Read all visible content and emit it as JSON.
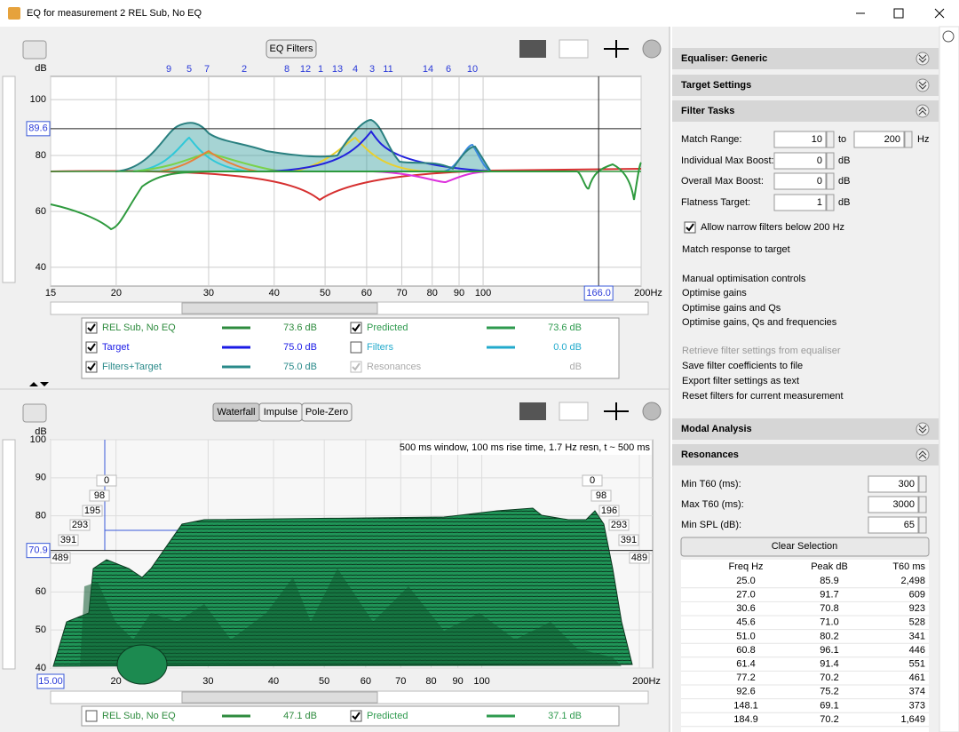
{
  "window": {
    "title": "EQ for measurement 2 REL Sub, No EQ"
  },
  "top_panel": {
    "eq_filters_button": "EQ Filters",
    "y_unit": "dB",
    "filter_labels": [
      "9",
      "5",
      "7",
      "2",
      "8",
      "12",
      "1",
      "13",
      "4",
      "3",
      "11",
      "14",
      "6",
      "10"
    ],
    "xlim": [
      15,
      200
    ],
    "ylim": [
      33.3,
      108.3
    ],
    "log_x": true,
    "yticks": [
      40,
      60,
      80,
      100
    ],
    "xticks": [
      15,
      20,
      30,
      40,
      50,
      60,
      70,
      80,
      90,
      100,
      {
        "value": 200,
        "label": "200Hz"
      }
    ],
    "y_cursor": 89.6,
    "x_cursor": {
      "value": 166,
      "label": "166.0"
    },
    "legend": [
      {
        "name": "REL Sub, No EQ",
        "value": "73.6 dB",
        "color": "#2e8b3e",
        "checked": true
      },
      {
        "name": "Predicted",
        "value": "73.6 dB",
        "color": "#2e9a4e",
        "checked": true
      },
      {
        "name": "Target",
        "value": "75.0 dB",
        "color": "#1a1ae6",
        "checked": true
      },
      {
        "name": "Filters",
        "value": "0.0 dB",
        "color": "#22aacc",
        "checked": false
      },
      {
        "name": "Filters+Target",
        "value": "75.0 dB",
        "color": "#2a8a8a",
        "checked": true
      },
      {
        "name": "Resonances",
        "value": "dB",
        "color": "#aaaaaa",
        "checked": true
      }
    ]
  },
  "bottom_panel": {
    "buttons": [
      "Waterfall",
      "Impulse",
      "Pole-Zero"
    ],
    "y_unit": "dB",
    "info": "500 ms window, 100 ms rise time,  1.7 Hz resn, t ~ 500 ms",
    "xlim": [
      15,
      200
    ],
    "ylim": [
      40,
      100
    ],
    "log_x": true,
    "yticks": [
      40,
      50,
      60,
      70,
      80,
      90,
      100
    ],
    "xticks": [
      {
        "value": 15,
        "label": "15.00"
      },
      20,
      30,
      40,
      50,
      60,
      70,
      80,
      90,
      100,
      {
        "value": 200,
        "label": "200Hz"
      }
    ],
    "y_cursor": 70.9,
    "time_labels_left": [
      "0",
      "98",
      "195",
      "293",
      "391",
      "489"
    ],
    "time_labels_right": [
      "0",
      "98",
      "196",
      "293",
      "391",
      "489"
    ],
    "legend": [
      {
        "name": "REL Sub, No EQ",
        "value": "47.1 dB",
        "color": "#2e8b3e",
        "checked": false
      },
      {
        "name": "Predicted",
        "value": "37.1 dB",
        "color": "#2e9a4e",
        "checked": true
      }
    ]
  },
  "right_panel": {
    "sections": {
      "equaliser": "Equaliser: Generic",
      "target_settings": "Target Settings",
      "filter_tasks": "Filter Tasks",
      "modal_analysis": "Modal Analysis",
      "resonances": "Resonances"
    },
    "filter_tasks": {
      "match_range_label": "Match Range:",
      "match_from": "10",
      "to": "to",
      "match_to": "200",
      "hz": "Hz",
      "individual_max_boost_label": "Individual Max Boost:",
      "individual_max_boost": "0",
      "overall_max_boost_label": "Overall Max Boost:",
      "overall_max_boost": "0",
      "flatness_target_label": "Flatness Target:",
      "flatness_target": "1",
      "db": "dB",
      "allow_narrow": "Allow narrow filters below 200 Hz",
      "actions": [
        "Match response to target",
        "Manual optimisation controls",
        "Optimise gains",
        "Optimise gains and Qs",
        "Optimise gains, Qs and frequencies",
        "Retrieve filter settings from equaliser",
        "Save filter coefficients to file",
        "Export filter settings as text",
        "Reset filters for current measurement"
      ]
    },
    "resonances": {
      "min_t60_label": "Min T60 (ms):",
      "min_t60": "300",
      "max_t60_label": "Max T60 (ms):",
      "max_t60": "3000",
      "min_spl_label": "Min SPL (dB):",
      "min_spl": "65",
      "clear_button": "Clear Selection",
      "table": {
        "headers": [
          "Freq Hz",
          "Peak dB",
          "T60 ms"
        ],
        "rows": [
          [
            "25.0",
            "85.9",
            "2,498"
          ],
          [
            "27.0",
            "91.7",
            "609"
          ],
          [
            "30.6",
            "70.8",
            "923"
          ],
          [
            "45.6",
            "71.0",
            "528"
          ],
          [
            "51.0",
            "80.2",
            "341"
          ],
          [
            "60.8",
            "96.1",
            "446"
          ],
          [
            "61.4",
            "91.4",
            "551"
          ],
          [
            "77.2",
            "70.2",
            "461"
          ],
          [
            "92.6",
            "75.2",
            "374"
          ],
          [
            "148.1",
            "69.1",
            "373"
          ],
          [
            "184.9",
            "70.2",
            "1,649"
          ]
        ]
      }
    }
  }
}
